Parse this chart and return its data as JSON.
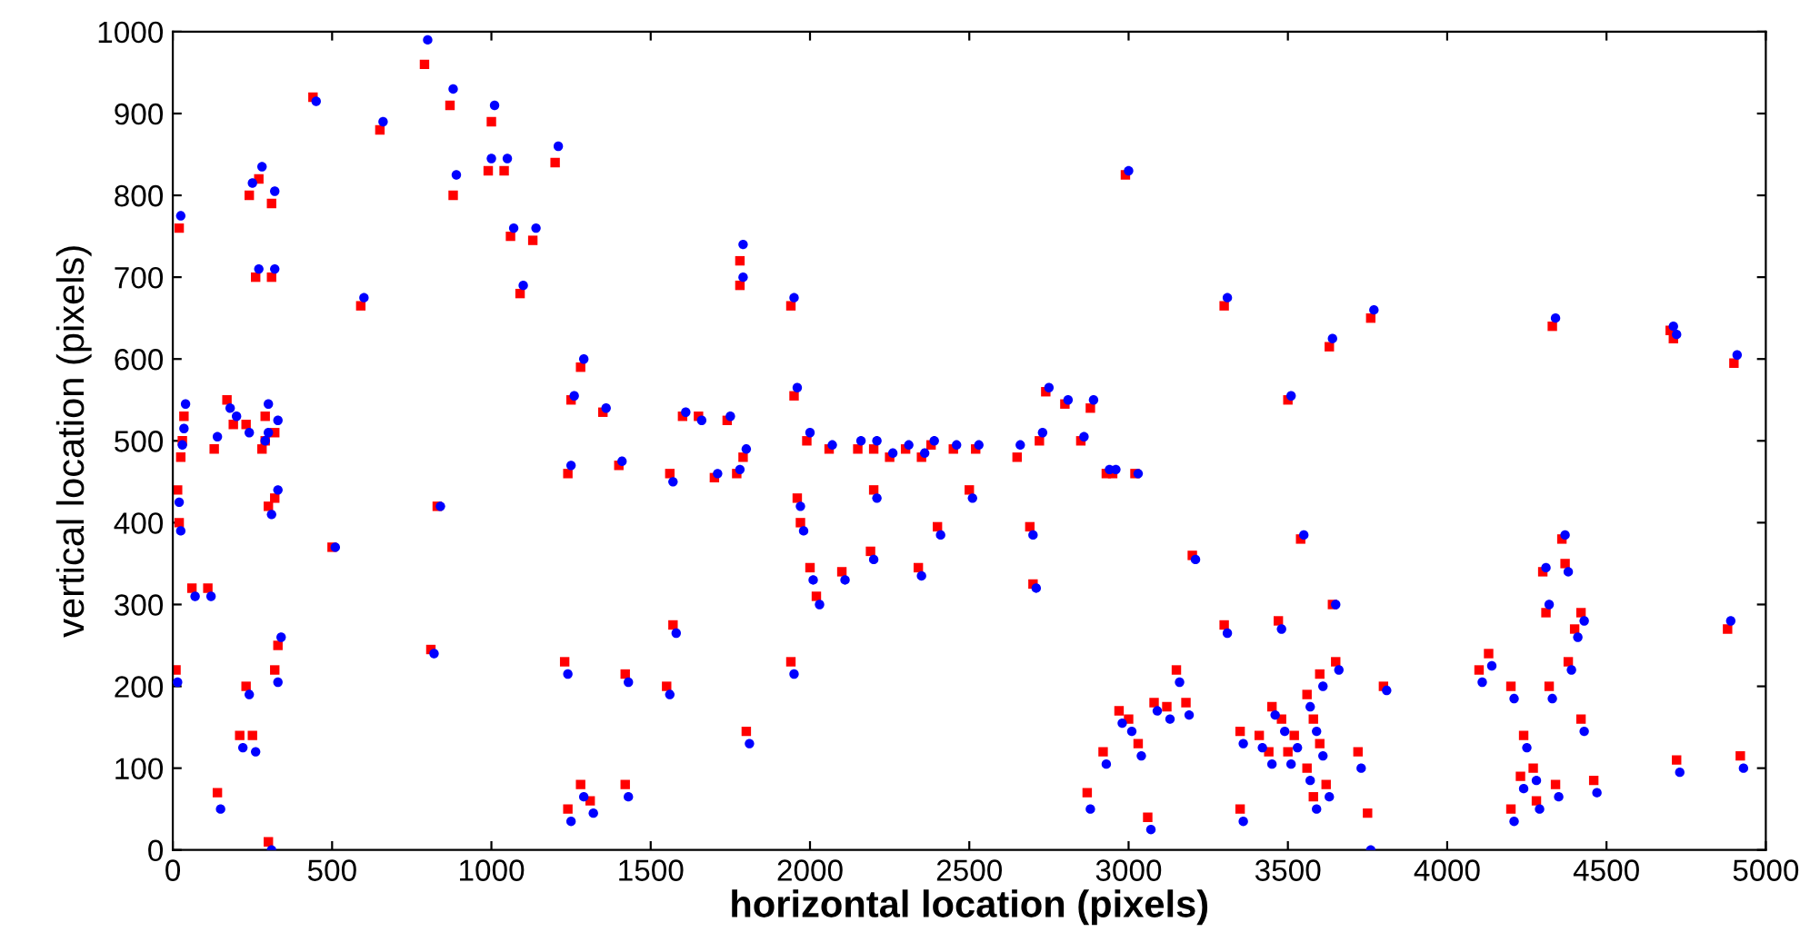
{
  "chart_data": {
    "type": "scatter",
    "xlabel": "horizontal location (pixels)",
    "ylabel": "vertical location (pixels)",
    "xlim": [
      0,
      5000
    ],
    "ylim": [
      0,
      1000
    ],
    "xticks": [
      0,
      500,
      1000,
      1500,
      2000,
      2500,
      3000,
      3500,
      4000,
      4500,
      5000
    ],
    "yticks": [
      0,
      100,
      200,
      300,
      400,
      500,
      600,
      700,
      800,
      900,
      1000
    ],
    "grid": false,
    "legend": false,
    "series": [
      {
        "color": "#ff0000",
        "marker": "square",
        "x": [
          10,
          20,
          15,
          25,
          30,
          35,
          20,
          60,
          110,
          130,
          140,
          190,
          210,
          230,
          240,
          260,
          270,
          280,
          290,
          300,
          310,
          310,
          320,
          320,
          300,
          170,
          230,
          250,
          290,
          320,
          330,
          440,
          500,
          590,
          650,
          790,
          810,
          830,
          870,
          880,
          990,
          1000,
          1040,
          1060,
          1090,
          1130,
          1200,
          1230,
          1240,
          1250,
          1240,
          1280,
          1280,
          1310,
          1350,
          1400,
          1420,
          1420,
          1550,
          1560,
          1570,
          1600,
          1650,
          1700,
          1740,
          1770,
          1780,
          1780,
          1790,
          1800,
          1940,
          1940,
          1950,
          1960,
          1970,
          1990,
          2000,
          2020,
          2060,
          2100,
          2150,
          2200,
          2200,
          2190,
          2250,
          2300,
          2350,
          2340,
          2380,
          2400,
          2450,
          2500,
          2520,
          2650,
          2690,
          2700,
          2720,
          2740,
          2800,
          2850,
          2880,
          2930,
          2950,
          2990,
          3020,
          2870,
          2920,
          2970,
          3000,
          3030,
          3060,
          3080,
          3120,
          3150,
          3180,
          3200,
          3300,
          3300,
          3350,
          3350,
          3410,
          3450,
          3440,
          3480,
          3470,
          3500,
          3500,
          3520,
          3540,
          3560,
          3560,
          3580,
          3580,
          3600,
          3600,
          3620,
          3630,
          3640,
          3650,
          3720,
          3750,
          3760,
          3800,
          4100,
          4130,
          4200,
          4200,
          4230,
          4240,
          4270,
          4280,
          4300,
          4310,
          4330,
          4320,
          4340,
          4360,
          4370,
          4380,
          4400,
          4420,
          4420,
          4460,
          4700,
          4710,
          4720,
          4880,
          4900,
          4920
        ],
        "values": [
          220,
          400,
          440,
          480,
          500,
          530,
          760,
          320,
          320,
          490,
          70,
          520,
          140,
          200,
          800,
          700,
          820,
          490,
          530,
          420,
          790,
          700,
          430,
          220,
          10,
          550,
          520,
          140,
          500,
          510,
          250,
          920,
          370,
          665,
          880,
          960,
          245,
          420,
          910,
          800,
          830,
          890,
          830,
          750,
          680,
          745,
          840,
          230,
          460,
          550,
          50,
          590,
          80,
          60,
          535,
          470,
          80,
          215,
          200,
          460,
          275,
          530,
          530,
          455,
          525,
          460,
          690,
          720,
          480,
          145,
          665,
          230,
          555,
          430,
          400,
          500,
          345,
          310,
          490,
          340,
          490,
          490,
          440,
          365,
          480,
          490,
          480,
          345,
          495,
          395,
          490,
          440,
          490,
          480,
          395,
          325,
          500,
          560,
          545,
          500,
          540,
          460,
          460,
          825,
          460,
          70,
          120,
          170,
          160,
          130,
          40,
          180,
          175,
          220,
          180,
          360,
          275,
          665,
          50,
          145,
          140,
          175,
          120,
          160,
          280,
          550,
          120,
          140,
          380,
          190,
          100,
          160,
          65,
          215,
          130,
          80,
          615,
          300,
          230,
          120,
          45,
          650,
          200,
          220,
          240,
          200,
          50,
          90,
          140,
          100,
          60,
          340,
          290,
          640,
          200,
          80,
          380,
          350,
          230,
          270,
          160,
          290,
          85,
          635,
          625,
          110,
          270,
          595,
          115
        ]
      },
      {
        "color": "#0000ff",
        "marker": "circle",
        "x": [
          15,
          25,
          20,
          30,
          35,
          40,
          25,
          70,
          120,
          140,
          150,
          200,
          220,
          240,
          250,
          270,
          280,
          290,
          300,
          310,
          320,
          320,
          330,
          330,
          310,
          180,
          240,
          260,
          300,
          330,
          340,
          450,
          510,
          600,
          660,
          800,
          820,
          840,
          880,
          890,
          1000,
          1010,
          1050,
          1070,
          1100,
          1140,
          1210,
          1240,
          1250,
          1260,
          1250,
          1290,
          1290,
          1320,
          1360,
          1410,
          1430,
          1430,
          1560,
          1570,
          1580,
          1610,
          1660,
          1710,
          1750,
          1780,
          1790,
          1790,
          1800,
          1810,
          1950,
          1950,
          1960,
          1970,
          1980,
          2000,
          2010,
          2030,
          2070,
          2110,
          2160,
          2210,
          2210,
          2200,
          2260,
          2310,
          2360,
          2350,
          2390,
          2410,
          2460,
          2510,
          2530,
          2660,
          2700,
          2710,
          2730,
          2750,
          2810,
          2860,
          2890,
          2940,
          2960,
          3000,
          3030,
          2880,
          2930,
          2980,
          3010,
          3040,
          3070,
          3090,
          3130,
          3160,
          3190,
          3210,
          3310,
          3310,
          3360,
          3360,
          3420,
          3460,
          3450,
          3490,
          3480,
          3510,
          3510,
          3530,
          3550,
          3570,
          3570,
          3590,
          3590,
          3610,
          3610,
          3630,
          3640,
          3650,
          3660,
          3730,
          3760,
          3770,
          3810,
          4110,
          4140,
          4210,
          4210,
          4240,
          4250,
          4280,
          4290,
          4310,
          4320,
          4340,
          4330,
          4350,
          4370,
          4380,
          4390,
          4410,
          4430,
          4430,
          4470,
          4710,
          4720,
          4730,
          4890,
          4910,
          4930
        ],
        "values": [
          205,
          390,
          425,
          495,
          515,
          545,
          775,
          310,
          310,
          505,
          50,
          530,
          125,
          190,
          815,
          710,
          835,
          500,
          545,
          410,
          805,
          710,
          440,
          205,
          0,
          540,
          510,
          120,
          510,
          525,
          260,
          915,
          370,
          675,
          890,
          990,
          240,
          420,
          930,
          825,
          845,
          910,
          845,
          760,
          690,
          760,
          860,
          215,
          470,
          555,
          35,
          600,
          65,
          45,
          540,
          475,
          65,
          205,
          190,
          450,
          265,
          535,
          525,
          460,
          530,
          465,
          700,
          740,
          490,
          130,
          675,
          215,
          565,
          420,
          390,
          510,
          330,
          300,
          495,
          330,
          500,
          500,
          430,
          355,
          485,
          495,
          485,
          335,
          500,
          385,
          495,
          430,
          495,
          495,
          385,
          320,
          510,
          565,
          550,
          505,
          550,
          465,
          465,
          830,
          460,
          50,
          105,
          155,
          145,
          115,
          25,
          170,
          160,
          205,
          165,
          355,
          265,
          675,
          35,
          130,
          125,
          165,
          105,
          145,
          270,
          555,
          105,
          125,
          385,
          175,
          85,
          145,
          50,
          200,
          115,
          65,
          625,
          300,
          220,
          100,
          0,
          660,
          195,
          205,
          225,
          185,
          35,
          75,
          125,
          85,
          50,
          345,
          300,
          650,
          185,
          65,
          385,
          340,
          220,
          260,
          145,
          280,
          70,
          640,
          630,
          95,
          280,
          605,
          100
        ]
      }
    ]
  }
}
